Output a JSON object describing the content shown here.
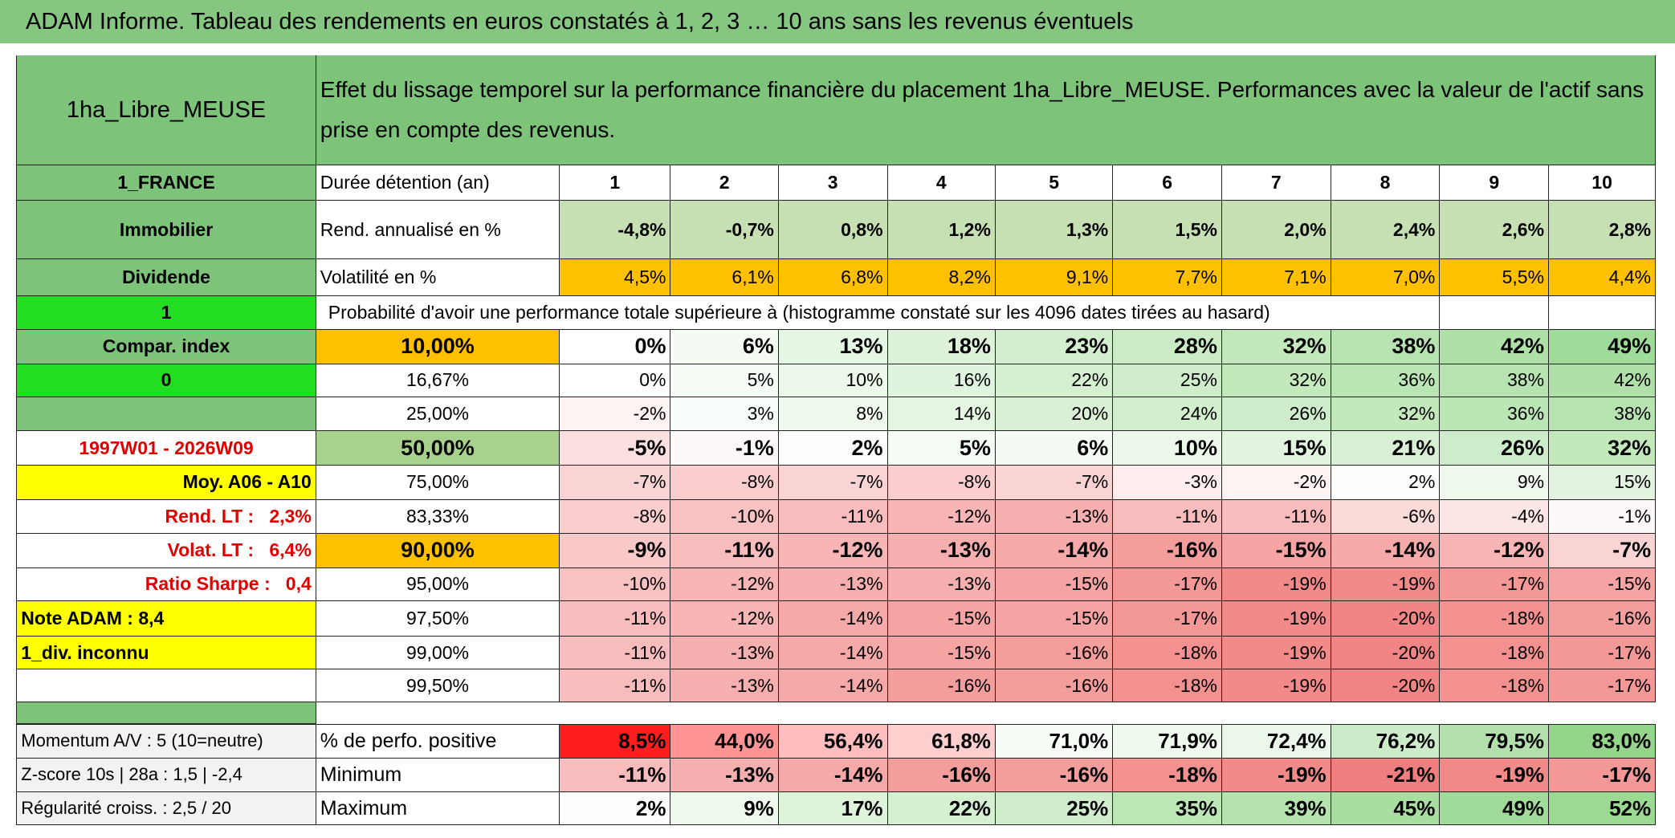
{
  "title": "ADAM Informe. Tableau des rendements en euros constatés à 1, 2, 3 … 10 ans sans les revenus éventuels",
  "header": {
    "fund": "1ha_Libre_MEUSE",
    "description": "Effet du lissage temporel sur la performance financière du placement 1ha_Libre_MEUSE. Performances avec la valeur de l'actif sans prise en compte des revenus."
  },
  "rows": [
    {
      "side": "1_FRANCE",
      "label": "Durée détention (an)",
      "cells": [
        1,
        2,
        3,
        4,
        5,
        6,
        7,
        8,
        9,
        10
      ]
    },
    {
      "side": "Immobilier",
      "label": "Rend. annualisé en %",
      "cells": [
        "-4,8%",
        "-0,7%",
        "0,8%",
        "1,2%",
        "1,3%",
        "1,5%",
        "2,0%",
        "2,4%",
        "2,6%",
        "2,8%"
      ]
    },
    {
      "side": "Dividende",
      "label": "Volatilité en %",
      "cells": [
        "4,5%",
        "6,1%",
        "6,8%",
        "8,2%",
        "9,1%",
        "7,7%",
        "7,1%",
        "7,0%",
        "5,5%",
        "4,4%"
      ]
    },
    {
      "side": "1",
      "note": "Probabilité d'avoir une performance totale supérieure à (histogramme constaté sur les 4096 dates tirées au hasard)"
    },
    {
      "side": "Compar. index",
      "label": "10,00%",
      "cells": [
        "0%",
        "6%",
        "13%",
        "18%",
        "23%",
        "28%",
        "32%",
        "38%",
        "42%",
        "49%"
      ]
    },
    {
      "side": "0",
      "label": "16,67%",
      "cells": [
        "0%",
        "5%",
        "10%",
        "16%",
        "22%",
        "25%",
        "32%",
        "36%",
        "38%",
        "42%"
      ]
    },
    {
      "label": "25,00%",
      "cells": [
        "-2%",
        "3%",
        "8%",
        "14%",
        "20%",
        "24%",
        "26%",
        "32%",
        "36%",
        "38%"
      ]
    },
    {
      "side": "1997W01 - 2026W09",
      "label": "50,00%",
      "cells": [
        "-5%",
        "-1%",
        "2%",
        "5%",
        "6%",
        "10%",
        "15%",
        "21%",
        "26%",
        "32%"
      ]
    },
    {
      "side": "Moy. A06 - A10",
      "label": "75,00%",
      "cells": [
        "-7%",
        "-8%",
        "-7%",
        "-8%",
        "-7%",
        "-3%",
        "-2%",
        "2%",
        "9%",
        "15%"
      ]
    },
    {
      "side": "Rend. LT :   2,3%",
      "label": "83,33%",
      "cells": [
        "-8%",
        "-10%",
        "-11%",
        "-12%",
        "-13%",
        "-11%",
        "-11%",
        "-6%",
        "-4%",
        "-1%"
      ]
    },
    {
      "side": "Volat. LT :   6,4%",
      "label": "90,00%",
      "cells": [
        "-9%",
        "-11%",
        "-12%",
        "-13%",
        "-14%",
        "-16%",
        "-15%",
        "-14%",
        "-12%",
        "-7%"
      ]
    },
    {
      "side": "Ratio Sharpe :   0,4",
      "label": "95,00%",
      "cells": [
        "-10%",
        "-12%",
        "-13%",
        "-13%",
        "-15%",
        "-17%",
        "-19%",
        "-19%",
        "-17%",
        "-15%"
      ]
    },
    {
      "side": "Note ADAM : 8,4",
      "label": "97,50%",
      "cells": [
        "-11%",
        "-12%",
        "-14%",
        "-15%",
        "-15%",
        "-17%",
        "-19%",
        "-20%",
        "-18%",
        "-16%"
      ]
    },
    {
      "side": "1_div. inconnu",
      "label": "99,00%",
      "cells": [
        "-11%",
        "-13%",
        "-14%",
        "-15%",
        "-16%",
        "-18%",
        "-19%",
        "-20%",
        "-18%",
        "-17%"
      ]
    },
    {
      "label": "99,50%",
      "cells": [
        "-11%",
        "-13%",
        "-14%",
        "-16%",
        "-16%",
        "-18%",
        "-19%",
        "-20%",
        "-18%",
        "-17%"
      ]
    }
  ],
  "footer_rows": [
    {
      "side": "Momentum A/V : 5 (10=neutre)",
      "label": "% de perfo. positive",
      "cells": [
        "8,5%",
        "44,0%",
        "56,4%",
        "61,8%",
        "71,0%",
        "71,9%",
        "72,4%",
        "76,2%",
        "79,5%",
        "83,0%"
      ]
    },
    {
      "side": "Z-score 10s | 28a : 1,5 | -2,4",
      "label": "Minimum",
      "cells": [
        "-11%",
        "-13%",
        "-14%",
        "-16%",
        "-16%",
        "-18%",
        "-19%",
        "-21%",
        "-19%",
        "-17%"
      ]
    },
    {
      "side": "Régularité croiss. : 2,5 / 20",
      "label": "Maximum",
      "cells": [
        "2%",
        "9%",
        "17%",
        "22%",
        "25%",
        "35%",
        "39%",
        "45%",
        "49%",
        "52%"
      ]
    }
  ]
}
